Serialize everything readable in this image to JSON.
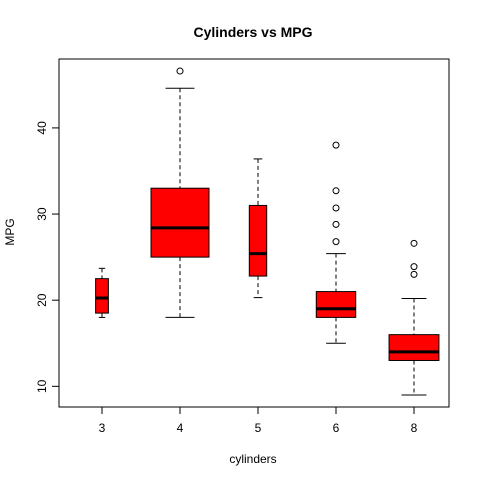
{
  "chart_data": {
    "type": "boxplot",
    "title": "Cylinders vs MPG",
    "xlabel": "cylinders",
    "ylabel": "MPG",
    "ylim": [
      7.6,
      48.0
    ],
    "yticks": [
      10,
      20,
      30,
      40
    ],
    "grid": false,
    "legend": "none",
    "box_color": "#ff0000",
    "categories": [
      "3",
      "4",
      "5",
      "6",
      "8"
    ],
    "relative_widths": [
      0.22,
      1.0,
      0.3,
      0.68,
      0.86
    ],
    "stats": [
      {
        "whisker_low": 18.0,
        "q1": 18.5,
        "median": 20.25,
        "q3": 22.5,
        "whisker_high": 23.7,
        "outliers": []
      },
      {
        "whisker_low": 18.0,
        "q1": 25.0,
        "median": 28.4,
        "q3": 33.0,
        "whisker_high": 44.6,
        "outliers": [
          46.6
        ]
      },
      {
        "whisker_low": 20.3,
        "q1": 22.8,
        "median": 25.4,
        "q3": 31.0,
        "whisker_high": 36.4,
        "outliers": []
      },
      {
        "whisker_low": 15.0,
        "q1": 18.0,
        "median": 19.0,
        "q3": 21.0,
        "whisker_high": 25.4,
        "outliers": [
          26.8,
          28.8,
          30.7,
          32.7,
          38.0
        ]
      },
      {
        "whisker_low": 9.0,
        "q1": 13.0,
        "median": 14.0,
        "q3": 16.0,
        "whisker_high": 20.2,
        "outliers": [
          23.0,
          23.9,
          26.6
        ]
      }
    ]
  }
}
